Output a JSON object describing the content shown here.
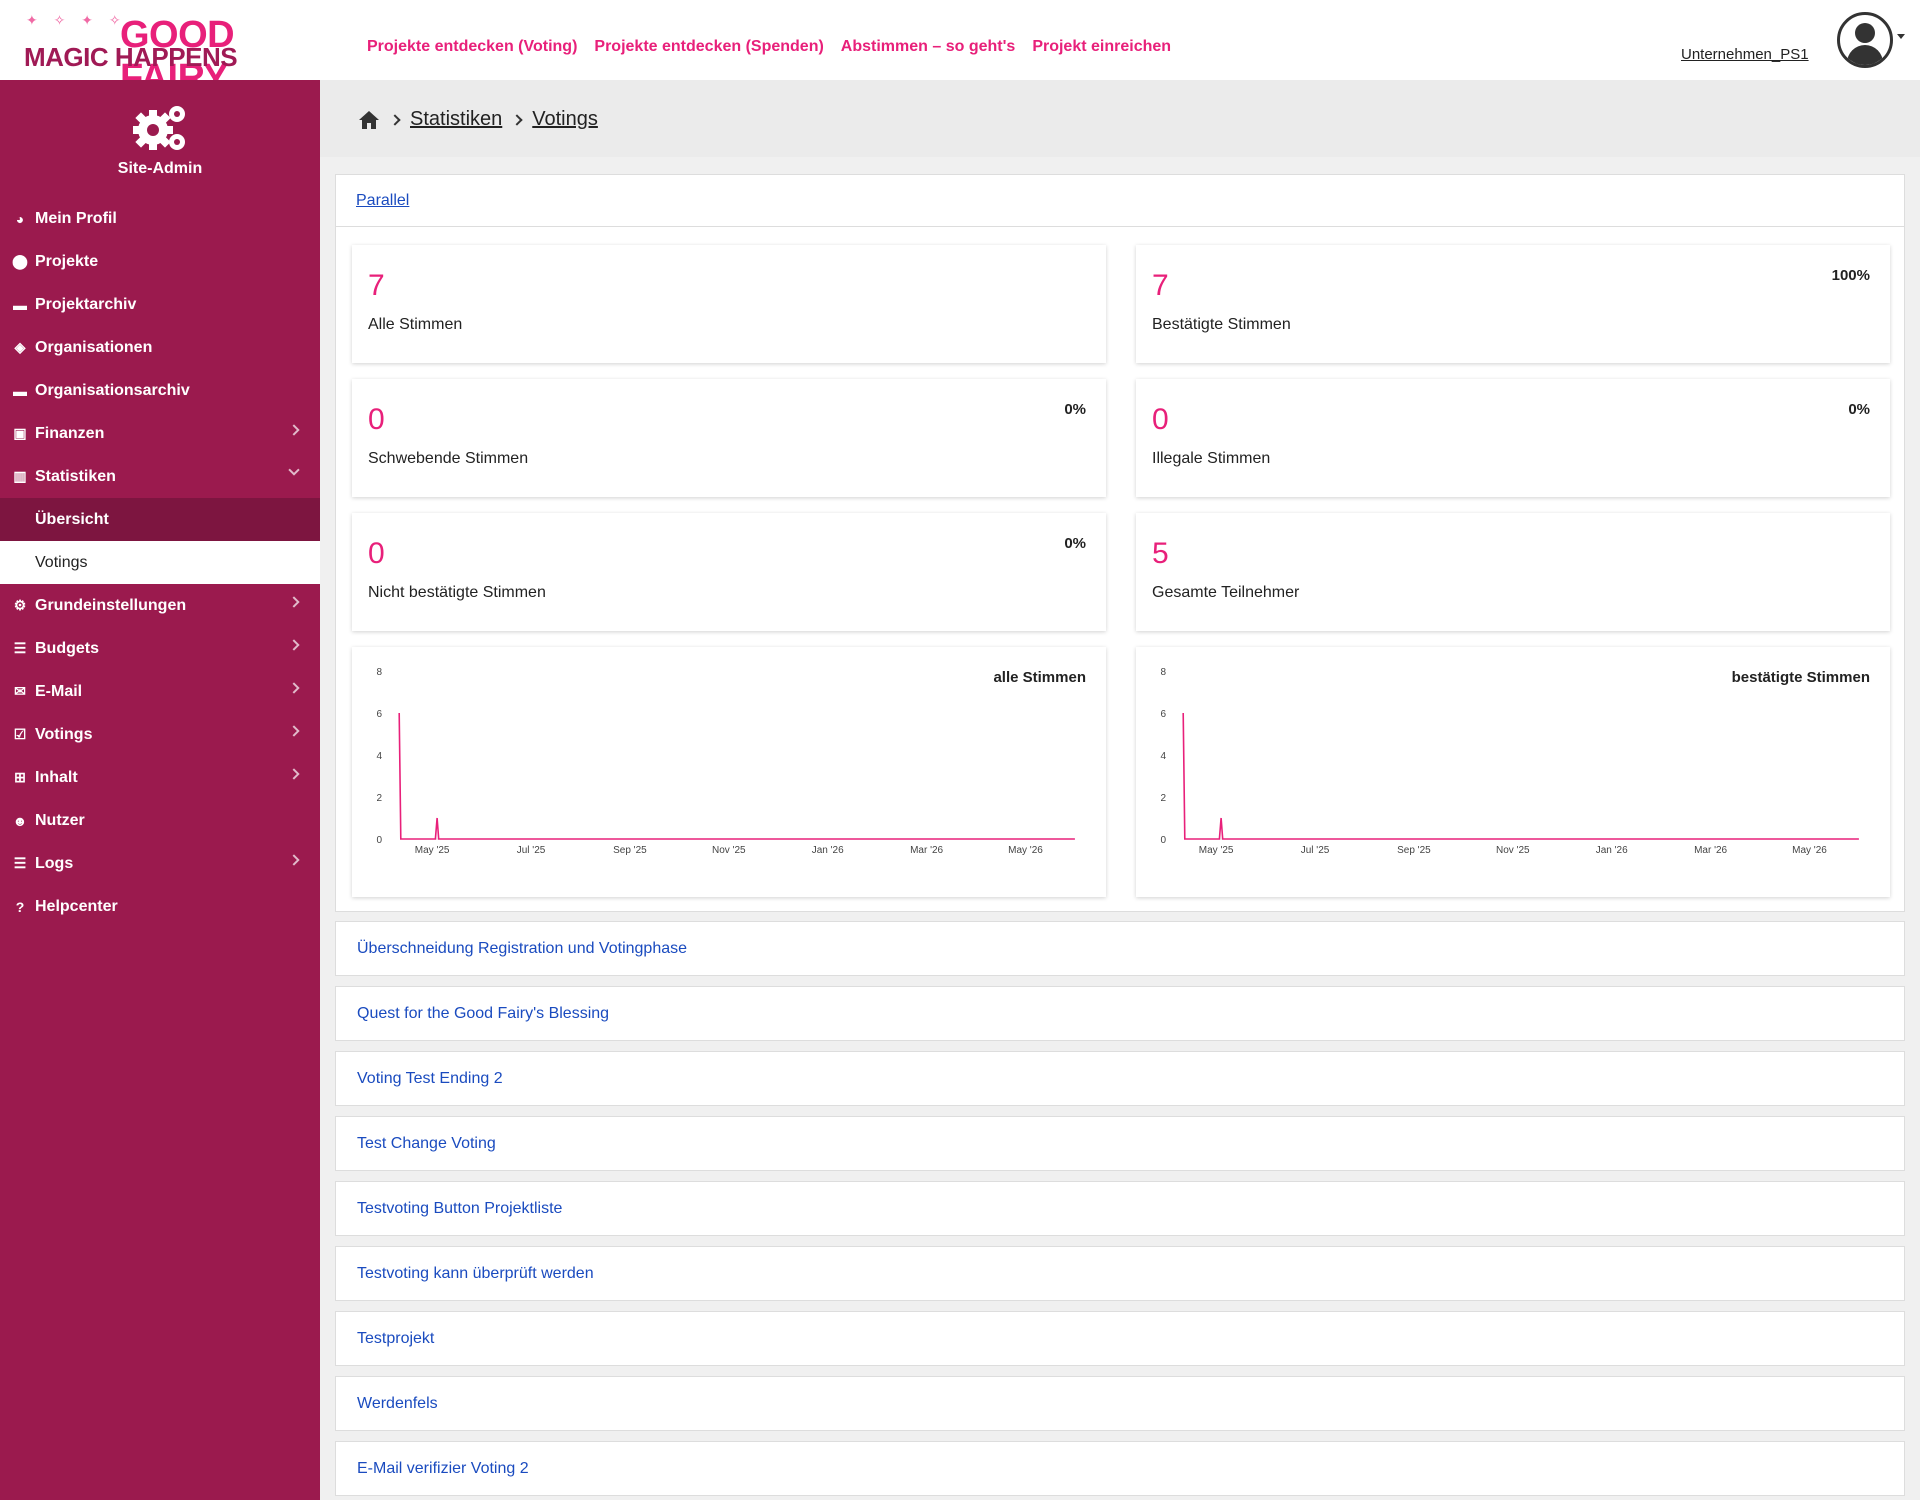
{
  "header": {
    "logo_top": "GOOD FAIRY",
    "logo_bottom": "MAGIC HAPPENS",
    "nav": [
      "Projekte entdecken (Voting)",
      "Projekte entdecken (Spenden)",
      "Abstimmen – so geht's",
      "Projekt einreichen"
    ],
    "username": "Unternehmen_PS1"
  },
  "sidebar": {
    "title": "Site-Admin",
    "items": [
      {
        "label": "Mein Profil",
        "icon": "dashboard-icon"
      },
      {
        "label": "Projekte",
        "icon": "map-marker-icon"
      },
      {
        "label": "Projektarchiv",
        "icon": "archive-icon"
      },
      {
        "label": "Organisationen",
        "icon": "shield-icon"
      },
      {
        "label": "Organisationsarchiv",
        "icon": "archive-icon"
      },
      {
        "label": "Finanzen",
        "icon": "money-icon"
      },
      {
        "label": "Statistiken",
        "icon": "chart-icon"
      },
      {
        "label": "Grundeinstellungen",
        "icon": "gears-icon"
      },
      {
        "label": "Budgets",
        "icon": "list-check-icon"
      },
      {
        "label": "E-Mail",
        "icon": "envelope-icon"
      },
      {
        "label": "Votings",
        "icon": "checkbox-icon"
      },
      {
        "label": "Inhalt",
        "icon": "sitemap-icon"
      },
      {
        "label": "Nutzer",
        "icon": "users-icon"
      },
      {
        "label": "Logs",
        "icon": "list-icon"
      },
      {
        "label": "Helpcenter",
        "icon": "question-icon"
      }
    ],
    "subitems": [
      "Übersicht",
      "Votings"
    ]
  },
  "breadcrumb": [
    "Statistiken",
    "Votings"
  ],
  "panel": {
    "tab": "Parallel",
    "stats": [
      {
        "value": "7",
        "label": "Alle Stimmen",
        "pct": ""
      },
      {
        "value": "7",
        "label": "Bestätigte Stimmen",
        "pct": "100%"
      },
      {
        "value": "0",
        "label": "Schwebende Stimmen",
        "pct": "0%"
      },
      {
        "value": "0",
        "label": "Illegale Stimmen",
        "pct": "0%"
      },
      {
        "value": "0",
        "label": "Nicht bestätigte Stimmen",
        "pct": "0%"
      },
      {
        "value": "5",
        "label": "Gesamte Teilnehmer",
        "pct": ""
      }
    ]
  },
  "chart_data": [
    {
      "type": "line",
      "title": "alle Stimmen",
      "x_ticks": [
        "May '25",
        "Jul '25",
        "Sep '25",
        "Nov '25",
        "Jan '26",
        "Mar '26",
        "May '26"
      ],
      "y_ticks": [
        0,
        2,
        4,
        6,
        8
      ],
      "ylim": [
        0,
        8
      ],
      "x": [
        "2025-04-11",
        "2025-04-12",
        "2025-05-03",
        "2025-05-04",
        "2025-05-05",
        "2026-05-31"
      ],
      "series": [
        {
          "values": [
            6,
            0,
            0,
            1,
            0,
            0
          ]
        }
      ],
      "color": "#e8207a",
      "grid": false
    },
    {
      "type": "line",
      "title": "bestätigte Stimmen",
      "x_ticks": [
        "May '25",
        "Jul '25",
        "Sep '25",
        "Nov '25",
        "Jan '26",
        "Mar '26",
        "May '26"
      ],
      "y_ticks": [
        0,
        2,
        4,
        6,
        8
      ],
      "ylim": [
        0,
        8
      ],
      "x": [
        "2025-04-11",
        "2025-04-12",
        "2025-05-03",
        "2025-05-04",
        "2025-05-05",
        "2026-05-31"
      ],
      "series": [
        {
          "values": [
            6,
            0,
            0,
            1,
            0,
            0
          ]
        }
      ],
      "color": "#e8207a",
      "grid": false
    }
  ],
  "votings": [
    "Überschneidung Registration und Votingphase",
    "Quest for the Good Fairy's Blessing",
    "Voting Test Ending 2",
    "Test Change Voting",
    "Testvoting Button Projektliste",
    "Testvoting kann überprüft werden",
    "Testprojekt",
    "Werdenfels",
    "E-Mail verifizier Voting 2"
  ],
  "colors": {
    "brand": "#e8207a",
    "sidebar": "#9b1a4e",
    "link": "#1a4bbf"
  }
}
